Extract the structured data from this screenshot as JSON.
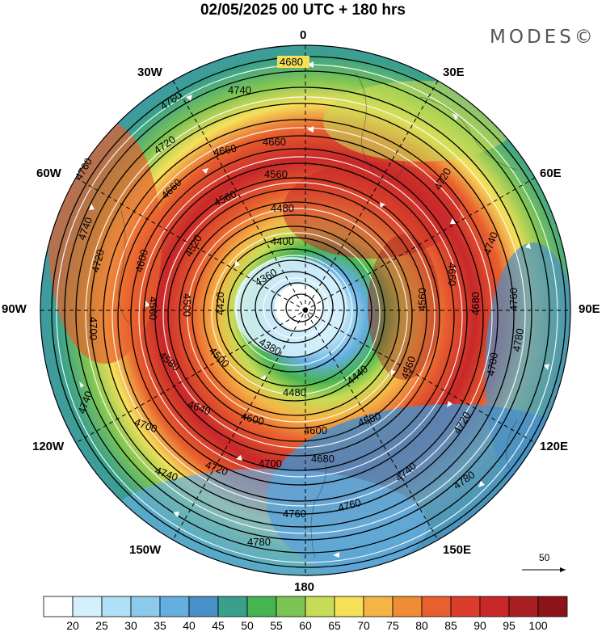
{
  "title": "02/05/2025  00 UTC  + 180 hrs",
  "brand": "MODES©",
  "longitude_labels": [
    "0",
    "30E",
    "60E",
    "90E",
    "120E",
    "150E",
    "180",
    "150W",
    "120W",
    "90W",
    "60W",
    "30W"
  ],
  "contour_labels": {
    "outer": "4780",
    "ring2": "4760",
    "ring3": "4740",
    "ring4": "4720",
    "ring5": "4700",
    "ring6": "4680",
    "ring7": "4660",
    "ring8": "4640",
    "ring9": "4600",
    "ring10": "4580",
    "ring11": "4560",
    "ring12": "4520",
    "ring13": "4500",
    "ring14": "4480",
    "ring15": "4440",
    "ring16": "4420",
    "ring17": "4400",
    "ring18": "4380",
    "ring19": "4360"
  },
  "vector_scale": "50",
  "colorbar": {
    "ticks": [
      "20",
      "25",
      "30",
      "35",
      "40",
      "45",
      "50",
      "55",
      "60",
      "65",
      "70",
      "75",
      "80",
      "85",
      "90",
      "95",
      "100"
    ],
    "colors": [
      "#ffffff",
      "#d4f0fb",
      "#b0e0f5",
      "#8ccaec",
      "#65aee0",
      "#4a90c8",
      "#3aa08c",
      "#46b450",
      "#7cc454",
      "#c6dc56",
      "#f5e05a",
      "#f5b546",
      "#f08c36",
      "#e8602e",
      "#dc3c2c",
      "#c8282a",
      "#a81e22",
      "#8c1418"
    ]
  },
  "wind_speed_fill": {
    "outer_ring": "#4a90c8",
    "mid_ring": "#46b450",
    "jet_ring": "#dc3c2c",
    "inner_ring": "#f5b546",
    "core": "#b0e0f5"
  }
}
